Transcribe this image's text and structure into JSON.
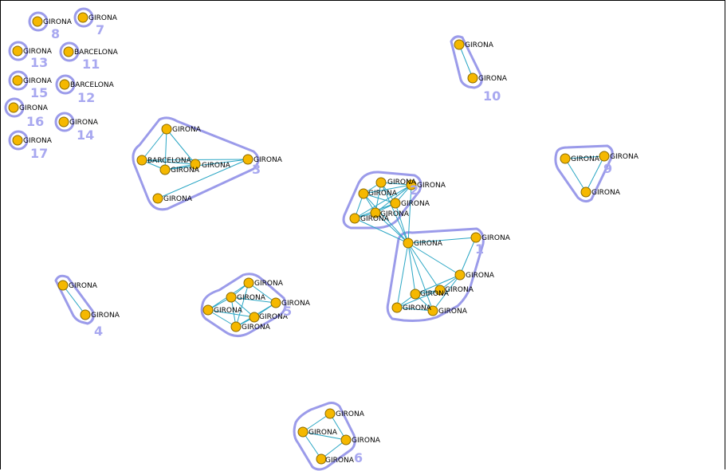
{
  "colors": {
    "node_fill": "#f5b800",
    "edge": "#2aa6c4",
    "hull": "#9b9bea",
    "cluster_label": "#a8a8f0"
  },
  "clusters": [
    {
      "id": "8",
      "label": "8"
    },
    {
      "id": "7",
      "label": "7"
    },
    {
      "id": "13",
      "label": "13"
    },
    {
      "id": "11",
      "label": "11"
    },
    {
      "id": "15",
      "label": "15"
    },
    {
      "id": "12",
      "label": "12"
    },
    {
      "id": "16",
      "label": "16"
    },
    {
      "id": "14",
      "label": "14"
    },
    {
      "id": "17",
      "label": "17"
    },
    {
      "id": "10",
      "label": "10"
    },
    {
      "id": "3",
      "label": "3"
    },
    {
      "id": "9",
      "label": "9"
    },
    {
      "id": "2",
      "label": "2"
    },
    {
      "id": "1",
      "label": "1"
    },
    {
      "id": "4",
      "label": "4"
    },
    {
      "id": "5",
      "label": "5"
    },
    {
      "id": "6",
      "label": "6"
    }
  ],
  "nodes": [
    {
      "id": "n8",
      "label": "GIRONA",
      "cluster": "8"
    },
    {
      "id": "n7",
      "label": "GIRONA",
      "cluster": "7"
    },
    {
      "id": "n13",
      "label": "GIRONA",
      "cluster": "13"
    },
    {
      "id": "n11",
      "label": "BARCELONA",
      "cluster": "11"
    },
    {
      "id": "n15",
      "label": "GIRONA",
      "cluster": "15"
    },
    {
      "id": "n12",
      "label": "BARCELONA",
      "cluster": "12"
    },
    {
      "id": "n16",
      "label": "GIRONA",
      "cluster": "16"
    },
    {
      "id": "n14",
      "label": "GIRONA",
      "cluster": "14"
    },
    {
      "id": "n17",
      "label": "GIRONA",
      "cluster": "17"
    },
    {
      "id": "n10a",
      "label": "GIRONA",
      "cluster": "10"
    },
    {
      "id": "n10b",
      "label": "GIRONA",
      "cluster": "10"
    },
    {
      "id": "n3a",
      "label": "GIRONA",
      "cluster": "3"
    },
    {
      "id": "n3b",
      "label": "BARCELONA",
      "cluster": "3"
    },
    {
      "id": "n3c",
      "label": "GIRONA",
      "cluster": "3"
    },
    {
      "id": "n3d",
      "label": "GIRONA",
      "cluster": "3"
    },
    {
      "id": "n3e",
      "label": "GIRONA",
      "cluster": "3"
    },
    {
      "id": "n3f",
      "label": "GIRONA",
      "cluster": "3"
    },
    {
      "id": "n9a",
      "label": "GIRONA",
      "cluster": "9"
    },
    {
      "id": "n9b",
      "label": "GIRONA",
      "cluster": "9"
    },
    {
      "id": "n9c",
      "label": "GIRONA",
      "cluster": "9"
    },
    {
      "id": "n2a",
      "label": "GIRONA",
      "cluster": "2"
    },
    {
      "id": "n2b",
      "label": "GIRONA",
      "cluster": "2"
    },
    {
      "id": "n2c",
      "label": "GIRONA",
      "cluster": "2"
    },
    {
      "id": "n2d",
      "label": "GIRONA",
      "cluster": "2"
    },
    {
      "id": "n2e",
      "label": "GIRONA",
      "cluster": "2"
    },
    {
      "id": "n2f",
      "label": "GIRONA",
      "cluster": "2"
    },
    {
      "id": "n1a",
      "label": "GIRONA",
      "cluster": "1"
    },
    {
      "id": "n1b",
      "label": "GIRONA",
      "cluster": "1"
    },
    {
      "id": "n1c",
      "label": "GIRONA",
      "cluster": "1"
    },
    {
      "id": "n1d",
      "label": "GIRONA",
      "cluster": "1"
    },
    {
      "id": "n1e",
      "label": "GIRONA",
      "cluster": "1"
    },
    {
      "id": "n1f",
      "label": "GIRONA",
      "cluster": "1"
    },
    {
      "id": "n1g",
      "label": "GIRONA",
      "cluster": "1"
    },
    {
      "id": "n4a",
      "label": "GIRONA",
      "cluster": "4"
    },
    {
      "id": "n4b",
      "label": "GIRONA",
      "cluster": "4"
    },
    {
      "id": "n5a",
      "label": "GIRONA",
      "cluster": "5"
    },
    {
      "id": "n5b",
      "label": "GIRONA",
      "cluster": "5"
    },
    {
      "id": "n5c",
      "label": "GIRONA",
      "cluster": "5"
    },
    {
      "id": "n5d",
      "label": "GIRONA",
      "cluster": "5"
    },
    {
      "id": "n5e",
      "label": "GIRONA",
      "cluster": "5"
    },
    {
      "id": "n5f",
      "label": "GIRONA",
      "cluster": "5"
    },
    {
      "id": "n6a",
      "label": "GIRONA",
      "cluster": "6"
    },
    {
      "id": "n6b",
      "label": "GIRONA",
      "cluster": "6"
    },
    {
      "id": "n6c",
      "label": "GIRONA",
      "cluster": "6"
    },
    {
      "id": "n6d",
      "label": "GIRONA",
      "cluster": "6"
    }
  ],
  "edges": [
    [
      "n10a",
      "n10b"
    ],
    [
      "n4a",
      "n4b"
    ],
    [
      "n3a",
      "n3b"
    ],
    [
      "n3a",
      "n3c"
    ],
    [
      "n3a",
      "n3d"
    ],
    [
      "n3b",
      "n3c"
    ],
    [
      "n3b",
      "n3d"
    ],
    [
      "n3b",
      "n3e"
    ],
    [
      "n3c",
      "n3d"
    ],
    [
      "n3c",
      "n3e"
    ],
    [
      "n3e",
      "n3f"
    ],
    [
      "n9a",
      "n9b"
    ],
    [
      "n9a",
      "n9c"
    ],
    [
      "n9b",
      "n9c"
    ],
    [
      "n2a",
      "n2b"
    ],
    [
      "n2a",
      "n2c"
    ],
    [
      "n2a",
      "n2d"
    ],
    [
      "n2a",
      "n2e"
    ],
    [
      "n2b",
      "n2c"
    ],
    [
      "n2b",
      "n2d"
    ],
    [
      "n2b",
      "n2e"
    ],
    [
      "n2b",
      "n2f"
    ],
    [
      "n2c",
      "n2d"
    ],
    [
      "n2c",
      "n2e"
    ],
    [
      "n2c",
      "n2f"
    ],
    [
      "n2d",
      "n2e"
    ],
    [
      "n2d",
      "n2f"
    ],
    [
      "n2e",
      "n2f"
    ],
    [
      "n1a",
      "n2a"
    ],
    [
      "n1a",
      "n2b"
    ],
    [
      "n1a",
      "n2c"
    ],
    [
      "n1a",
      "n2d"
    ],
    [
      "n1a",
      "n2e"
    ],
    [
      "n1a",
      "n2f"
    ],
    [
      "n1a",
      "n1b"
    ],
    [
      "n1a",
      "n1c"
    ],
    [
      "n1a",
      "n1d"
    ],
    [
      "n1a",
      "n1e"
    ],
    [
      "n1a",
      "n1f"
    ],
    [
      "n1a",
      "n1g"
    ],
    [
      "n1b",
      "n1c"
    ],
    [
      "n1c",
      "n1d"
    ],
    [
      "n1c",
      "n1e"
    ],
    [
      "n1c",
      "n1g"
    ],
    [
      "n1d",
      "n1e"
    ],
    [
      "n1d",
      "n1f"
    ],
    [
      "n1e",
      "n1f"
    ],
    [
      "n1e",
      "n1g"
    ],
    [
      "n1f",
      "n1g"
    ],
    [
      "n5a",
      "n5b"
    ],
    [
      "n5a",
      "n5c"
    ],
    [
      "n5a",
      "n5d"
    ],
    [
      "n5b",
      "n5c"
    ],
    [
      "n5b",
      "n5d"
    ],
    [
      "n5b",
      "n5e"
    ],
    [
      "n5b",
      "n5f"
    ],
    [
      "n5c",
      "n5e"
    ],
    [
      "n5c",
      "n5f"
    ],
    [
      "n5d",
      "n5e"
    ],
    [
      "n5d",
      "n5f"
    ],
    [
      "n5e",
      "n5f"
    ],
    [
      "n5a",
      "n5f"
    ],
    [
      "n6a",
      "n6b"
    ],
    [
      "n6a",
      "n6c"
    ],
    [
      "n6b",
      "n6c"
    ],
    [
      "n6b",
      "n6d"
    ],
    [
      "n6c",
      "n6d"
    ]
  ]
}
